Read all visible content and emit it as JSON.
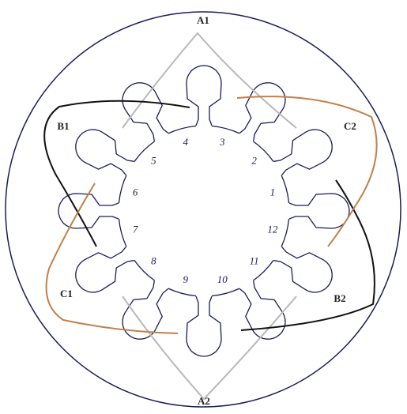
{
  "labels": {
    "a1": "A1",
    "a2": "A2",
    "b1": "B1",
    "b2": "B2",
    "c1": "C1",
    "c2": "C2"
  },
  "slots": [
    "1",
    "2",
    "3",
    "4",
    "5",
    "6",
    "7",
    "8",
    "9",
    "10",
    "11",
    "12"
  ]
}
